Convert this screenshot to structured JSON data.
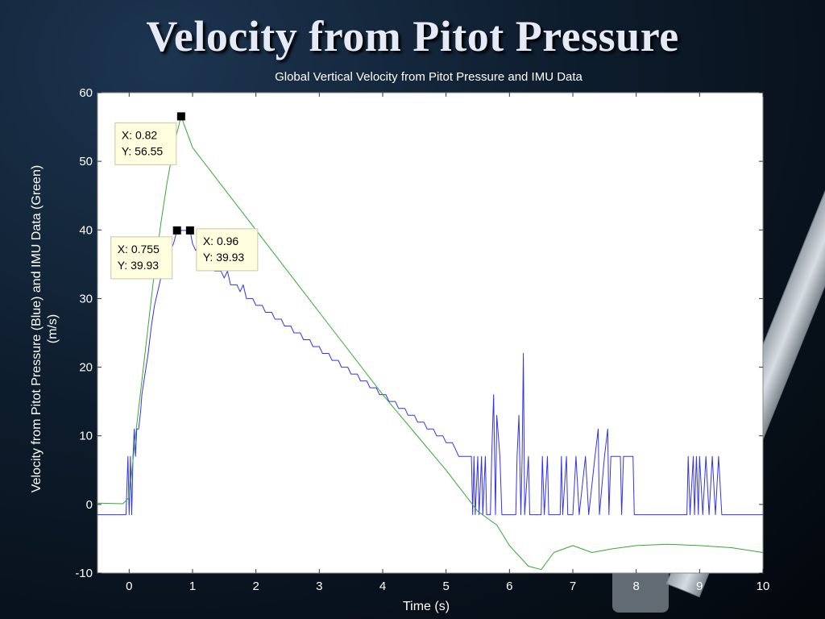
{
  "slide": {
    "title": "Velocity from Pitot Pressure"
  },
  "colors": {
    "background": "#0d1c2c",
    "plot_area": "#ffffff",
    "pitot_series": "#3333ee",
    "imu_series": "#33aa33",
    "axis_text": "#ffffff",
    "datatip_bg": "#ffffe0"
  },
  "chart_data": {
    "type": "line",
    "title": "Global Vertical Velocity from Pitot Pressure and IMU Data",
    "xlabel": "Time (s)",
    "ylabel": [
      "Velocity from Pitot Pressure (Blue) and IMU Data (Green)",
      "(m/s)"
    ],
    "xlim": [
      -0.5,
      10
    ],
    "ylim": [
      -10,
      60
    ],
    "xticks": [
      0,
      1,
      2,
      3,
      4,
      5,
      6,
      7,
      8,
      9,
      10
    ],
    "yticks": [
      -10,
      0,
      10,
      20,
      30,
      40,
      50,
      60
    ],
    "grid": false,
    "series": [
      {
        "color": "#3333ee",
        "points": [
          [
            -0.5,
            -1.5
          ],
          [
            -0.05,
            -1.5
          ],
          [
            -0.02,
            7
          ],
          [
            0,
            -1.5
          ],
          [
            0.02,
            7
          ],
          [
            0.04,
            -1.5
          ],
          [
            0.06,
            7
          ],
          [
            0.08,
            11
          ],
          [
            0.1,
            7
          ],
          [
            0.12,
            11
          ],
          [
            0.15,
            11
          ],
          [
            0.18,
            13.5
          ],
          [
            0.2,
            16
          ],
          [
            0.25,
            19
          ],
          [
            0.3,
            22
          ],
          [
            0.35,
            26
          ],
          [
            0.4,
            29
          ],
          [
            0.45,
            31
          ],
          [
            0.5,
            33
          ],
          [
            0.55,
            34
          ],
          [
            0.6,
            36
          ],
          [
            0.65,
            37
          ],
          [
            0.7,
            38
          ],
          [
            0.755,
            39.93
          ],
          [
            0.82,
            39.93
          ],
          [
            0.96,
            39.93
          ],
          [
            1.0,
            38
          ],
          [
            1.05,
            37
          ],
          [
            1.1,
            38
          ],
          [
            1.15,
            36
          ],
          [
            1.2,
            36
          ],
          [
            1.25,
            35
          ],
          [
            1.3,
            36
          ],
          [
            1.35,
            34
          ],
          [
            1.45,
            34
          ],
          [
            1.5,
            33
          ],
          [
            1.55,
            34
          ],
          [
            1.6,
            32
          ],
          [
            1.7,
            32
          ],
          [
            1.75,
            31
          ],
          [
            1.8,
            32
          ],
          [
            1.85,
            30
          ],
          [
            1.95,
            30
          ],
          [
            2.0,
            29
          ],
          [
            2.1,
            29
          ],
          [
            2.15,
            28
          ],
          [
            2.25,
            28
          ],
          [
            2.3,
            27
          ],
          [
            2.4,
            27
          ],
          [
            2.45,
            26
          ],
          [
            2.55,
            26
          ],
          [
            2.6,
            25
          ],
          [
            2.7,
            25
          ],
          [
            2.75,
            24
          ],
          [
            2.85,
            24
          ],
          [
            2.9,
            23
          ],
          [
            3.0,
            23
          ],
          [
            3.05,
            22
          ],
          [
            3.15,
            22
          ],
          [
            3.2,
            21
          ],
          [
            3.3,
            21
          ],
          [
            3.35,
            20
          ],
          [
            3.45,
            20
          ],
          [
            3.5,
            19
          ],
          [
            3.6,
            19
          ],
          [
            3.65,
            18
          ],
          [
            3.75,
            18
          ],
          [
            3.8,
            17
          ],
          [
            3.9,
            17
          ],
          [
            3.95,
            16
          ],
          [
            4.05,
            16
          ],
          [
            4.1,
            15
          ],
          [
            4.2,
            15
          ],
          [
            4.25,
            14
          ],
          [
            4.35,
            14
          ],
          [
            4.4,
            13
          ],
          [
            4.5,
            13
          ],
          [
            4.55,
            12
          ],
          [
            4.65,
            12
          ],
          [
            4.7,
            11
          ],
          [
            4.8,
            11
          ],
          [
            4.85,
            10
          ],
          [
            4.95,
            10
          ],
          [
            5.0,
            9
          ],
          [
            5.1,
            9
          ],
          [
            5.15,
            8
          ],
          [
            5.2,
            7
          ],
          [
            5.4,
            7
          ],
          [
            5.42,
            -1.5
          ],
          [
            5.44,
            7
          ],
          [
            5.46,
            -1.5
          ],
          [
            5.5,
            7
          ],
          [
            5.52,
            -1.5
          ],
          [
            5.56,
            7
          ],
          [
            5.58,
            -1.5
          ],
          [
            5.62,
            7
          ],
          [
            5.64,
            -1.5
          ],
          [
            5.7,
            -1.5
          ],
          [
            5.72,
            7
          ],
          [
            5.75,
            16
          ],
          [
            5.78,
            -1.5
          ],
          [
            5.8,
            13
          ],
          [
            5.85,
            7
          ],
          [
            5.88,
            -1.5
          ],
          [
            6.1,
            -1.5
          ],
          [
            6.12,
            7
          ],
          [
            6.15,
            13
          ],
          [
            6.18,
            -1.5
          ],
          [
            6.2,
            7
          ],
          [
            6.22,
            22
          ],
          [
            6.24,
            -1.5
          ],
          [
            6.3,
            7
          ],
          [
            6.32,
            -1.5
          ],
          [
            6.5,
            -1.5
          ],
          [
            6.52,
            7
          ],
          [
            6.55,
            -1.5
          ],
          [
            6.6,
            7
          ],
          [
            6.62,
            -1.5
          ],
          [
            6.8,
            -1.5
          ],
          [
            6.82,
            7
          ],
          [
            6.84,
            -1.5
          ],
          [
            6.9,
            7
          ],
          [
            6.92,
            -1.5
          ],
          [
            7.0,
            -1.5
          ],
          [
            7.05,
            7
          ],
          [
            7.1,
            -1.5
          ],
          [
            7.2,
            7
          ],
          [
            7.25,
            -1.5
          ],
          [
            7.35,
            7
          ],
          [
            7.4,
            11
          ],
          [
            7.42,
            -1.5
          ],
          [
            7.5,
            7
          ],
          [
            7.55,
            11
          ],
          [
            7.57,
            -1.5
          ],
          [
            7.6,
            7
          ],
          [
            7.75,
            7
          ],
          [
            7.77,
            -1.5
          ],
          [
            7.8,
            7
          ],
          [
            7.95,
            7
          ],
          [
            7.97,
            -1.5
          ],
          [
            8.8,
            -1.5
          ],
          [
            8.82,
            7
          ],
          [
            8.85,
            -1.5
          ],
          [
            8.9,
            7
          ],
          [
            8.92,
            -1.5
          ],
          [
            8.95,
            7
          ],
          [
            8.98,
            -1.5
          ],
          [
            9.0,
            7
          ],
          [
            9.05,
            -1.5
          ],
          [
            9.1,
            7
          ],
          [
            9.15,
            -1.5
          ],
          [
            9.2,
            7
          ],
          [
            9.25,
            -1.5
          ],
          [
            9.3,
            7
          ],
          [
            9.35,
            -1.5
          ],
          [
            10,
            -1.5
          ]
        ]
      },
      {
        "color": "#33aa33",
        "points": [
          [
            -0.5,
            0.2
          ],
          [
            -0.1,
            0.1
          ],
          [
            0.0,
            1
          ],
          [
            0.1,
            10
          ],
          [
            0.2,
            18
          ],
          [
            0.3,
            26
          ],
          [
            0.4,
            34
          ],
          [
            0.5,
            41
          ],
          [
            0.6,
            47
          ],
          [
            0.7,
            52
          ],
          [
            0.75,
            54
          ],
          [
            0.82,
            56.55
          ],
          [
            1.0,
            52
          ],
          [
            1.5,
            46
          ],
          [
            2.0,
            40
          ],
          [
            2.5,
            34
          ],
          [
            3.0,
            28
          ],
          [
            3.5,
            22
          ],
          [
            4.0,
            16
          ],
          [
            4.5,
            10.5
          ],
          [
            5.0,
            5
          ],
          [
            5.5,
            -1
          ],
          [
            5.8,
            -3
          ],
          [
            6.0,
            -6
          ],
          [
            6.3,
            -9
          ],
          [
            6.5,
            -9.5
          ],
          [
            6.7,
            -7
          ],
          [
            7.0,
            -6
          ],
          [
            7.3,
            -7
          ],
          [
            7.6,
            -6.5
          ],
          [
            8.0,
            -6
          ],
          [
            8.5,
            -5.8
          ],
          [
            9.0,
            -6
          ],
          [
            9.5,
            -6.3
          ],
          [
            10,
            -7
          ]
        ]
      }
    ],
    "annotations": [
      {
        "x": 0.82,
        "y": 56.55,
        "x_text": "X: 0.82",
        "y_text": "Y: 56.55",
        "side": "left"
      },
      {
        "x": 0.96,
        "y": 39.93,
        "x_text": "X: 0.96",
        "y_text": "Y: 39.93",
        "side": "right"
      },
      {
        "x": 0.755,
        "y": 39.93,
        "x_text": "X: 0.755",
        "y_text": "Y: 39.93",
        "side": "left"
      }
    ]
  }
}
